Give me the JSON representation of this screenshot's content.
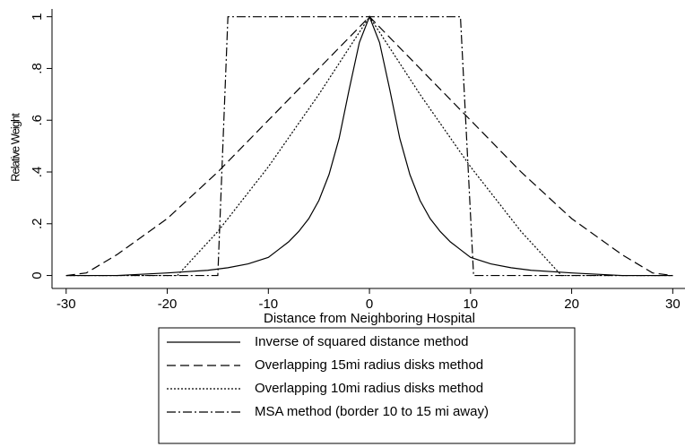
{
  "chart_data": {
    "type": "line",
    "x_label": "Distance from Neighboring Hospital",
    "y_label": "Relative Weight",
    "xlim": [
      -31.4,
      31.3
    ],
    "ylim": [
      -0.05,
      1.03
    ],
    "xticks": [
      -30,
      -20,
      -10,
      0,
      10,
      20,
      30
    ],
    "yticks": [
      0,
      {
        "value": 0.2,
        "label": ".2"
      },
      {
        "value": 0.4,
        "label": ".4"
      },
      {
        "value": 0.6,
        "label": ".6"
      },
      {
        "value": 0.8,
        "label": ".8"
      },
      1
    ],
    "series": [
      {
        "name": "Inverse of squared distance method",
        "color": "#000000",
        "dash": "none",
        "x": [
          -30,
          -25,
          -20,
          -16,
          -14,
          -12,
          -10,
          -9,
          -8,
          -7,
          -6,
          -5,
          -4,
          -3,
          -2,
          -1,
          0,
          1,
          2,
          3,
          4,
          5,
          6,
          7,
          8,
          9,
          10,
          12,
          14,
          16,
          20,
          25,
          30
        ],
        "values": [
          0,
          0,
          0.01,
          0.02,
          0.03,
          0.045,
          0.07,
          0.1,
          0.13,
          0.17,
          0.22,
          0.29,
          0.39,
          0.53,
          0.72,
          0.9,
          1,
          0.9,
          0.72,
          0.53,
          0.39,
          0.29,
          0.22,
          0.17,
          0.13,
          0.1,
          0.07,
          0.045,
          0.03,
          0.02,
          0.01,
          0,
          0
        ]
      },
      {
        "name": "Overlapping 15mi radius disks method",
        "color": "#000000",
        "dash": "10,5",
        "x": [
          -30,
          -28,
          -25,
          -20,
          -15,
          -10,
          -5,
          0,
          5,
          10,
          15,
          20,
          25,
          28,
          30
        ],
        "values": [
          0,
          0.01,
          0.08,
          0.22,
          0.4,
          0.6,
          0.8,
          1,
          0.8,
          0.6,
          0.4,
          0.22,
          0.08,
          0.01,
          0
        ]
      },
      {
        "name": "Overlapping 10mi radius disks method",
        "color": "#000000",
        "dash": "2,2",
        "x": [
          -30,
          -19,
          -15,
          -10,
          -5,
          0,
          5,
          10,
          15,
          19,
          30
        ],
        "values": [
          0,
          0,
          0.17,
          0.42,
          0.7,
          1,
          0.7,
          0.42,
          0.17,
          0,
          0
        ]
      },
      {
        "name": "MSA method (border 10 to 15 mi away)",
        "color": "#000000",
        "dash": "10,3,2,3",
        "x": [
          -30,
          -15,
          -14,
          9,
          10.3,
          30
        ],
        "values": [
          0,
          0,
          1,
          1,
          0,
          0
        ]
      }
    ]
  }
}
